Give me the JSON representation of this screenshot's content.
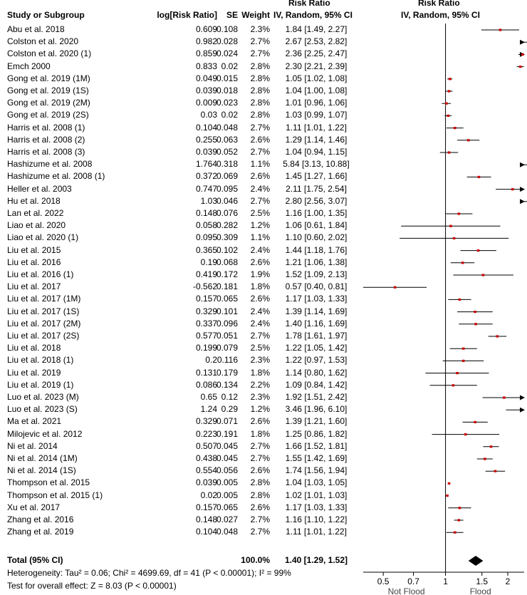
{
  "headers": {
    "study": "Study or Subgroup",
    "log_rr": "log[Risk Ratio]",
    "se": "SE",
    "weight": "Weight",
    "rr_top": "Risk Ratio",
    "rr_method": "IV, Random, 95% CI",
    "plot_top": "Risk Ratio",
    "plot_method": "IV, Random, 95% CI"
  },
  "chart_data": {
    "type": "forest",
    "x_scale": "log",
    "xlim": [
      0.4,
      2.4
    ],
    "x_ticks": [
      "0.5",
      "0.7",
      "1",
      "1.5",
      "2"
    ],
    "x_tick_values": [
      0.5,
      0.7,
      1,
      1.5,
      2
    ],
    "xlabel_left": "Not Flood",
    "xlabel_right": "Flood",
    "reference_line": 1,
    "studies": [
      {
        "name": "Abu et al. 2018",
        "log_rr": "0.609",
        "se": "0.108",
        "weight": "2.3%",
        "ci_text": "1.84 [1.49, 2.27]",
        "rr": 1.84,
        "lo": 1.49,
        "hi": 2.27
      },
      {
        "name": "Colston et al. 2020",
        "log_rr": "0.982",
        "se": "0.028",
        "weight": "2.7%",
        "ci_text": "2.67 [2.53, 2.82]",
        "rr": 2.67,
        "lo": 2.53,
        "hi": 2.82
      },
      {
        "name": "Colston et al. 2020 (1)",
        "log_rr": "0.859",
        "se": "0.024",
        "weight": "2.7%",
        "ci_text": "2.36 [2.25, 2.47]",
        "rr": 2.36,
        "lo": 2.25,
        "hi": 2.47
      },
      {
        "name": "Emch 2000",
        "log_rr": "0.833",
        "se": "0.02",
        "weight": "2.8%",
        "ci_text": "2.30 [2.21, 2.39]",
        "rr": 2.3,
        "lo": 2.21,
        "hi": 2.39
      },
      {
        "name": "Gong et al. 2019 (1M)",
        "log_rr": "0.049",
        "se": "0.015",
        "weight": "2.8%",
        "ci_text": "1.05 [1.02, 1.08]",
        "rr": 1.05,
        "lo": 1.02,
        "hi": 1.08
      },
      {
        "name": "Gong et al. 2019 (1S)",
        "log_rr": "0.039",
        "se": "0.018",
        "weight": "2.8%",
        "ci_text": "1.04 [1.00, 1.08]",
        "rr": 1.04,
        "lo": 1.0,
        "hi": 1.08
      },
      {
        "name": "Gong et al. 2019 (2M)",
        "log_rr": "0.009",
        "se": "0.023",
        "weight": "2.8%",
        "ci_text": "1.01 [0.96, 1.06]",
        "rr": 1.01,
        "lo": 0.96,
        "hi": 1.06
      },
      {
        "name": "Gong et al. 2019 (2S)",
        "log_rr": "0.03",
        "se": "0.02",
        "weight": "2.8%",
        "ci_text": "1.03 [0.99, 1.07]",
        "rr": 1.03,
        "lo": 0.99,
        "hi": 1.07
      },
      {
        "name": "Harris et al. 2008 (1)",
        "log_rr": "0.104",
        "se": "0.048",
        "weight": "2.7%",
        "ci_text": "1.11 [1.01, 1.22]",
        "rr": 1.11,
        "lo": 1.01,
        "hi": 1.22
      },
      {
        "name": "Harris et al. 2008 (2)",
        "log_rr": "0.255",
        "se": "0.063",
        "weight": "2.6%",
        "ci_text": "1.29 [1.14, 1.46]",
        "rr": 1.29,
        "lo": 1.14,
        "hi": 1.46
      },
      {
        "name": "Harris et al. 2008 (3)",
        "log_rr": "0.039",
        "se": "0.052",
        "weight": "2.7%",
        "ci_text": "1.04 [0.94, 1.15]",
        "rr": 1.04,
        "lo": 0.94,
        "hi": 1.15
      },
      {
        "name": "Hashizume et al. 2008",
        "log_rr": "1.764",
        "se": "0.318",
        "weight": "1.1%",
        "ci_text": "5.84 [3.13, 10.88]",
        "rr": 5.84,
        "lo": 3.13,
        "hi": 10.88
      },
      {
        "name": "Hashizume et al. 2008 (1)",
        "log_rr": "0.372",
        "se": "0.069",
        "weight": "2.6%",
        "ci_text": "1.45 [1.27, 1.66]",
        "rr": 1.45,
        "lo": 1.27,
        "hi": 1.66
      },
      {
        "name": "Heller et al. 2003",
        "log_rr": "0.747",
        "se": "0.095",
        "weight": "2.4%",
        "ci_text": "2.11 [1.75, 2.54]",
        "rr": 2.11,
        "lo": 1.75,
        "hi": 2.54
      },
      {
        "name": "Hu et al. 2018",
        "log_rr": "1.03",
        "se": "0.046",
        "weight": "2.7%",
        "ci_text": "2.80 [2.56, 3.07]",
        "rr": 2.8,
        "lo": 2.56,
        "hi": 3.07
      },
      {
        "name": "Lan et al. 2022",
        "log_rr": "0.148",
        "se": "0.076",
        "weight": "2.5%",
        "ci_text": "1.16 [1.00, 1.35]",
        "rr": 1.16,
        "lo": 1.0,
        "hi": 1.35
      },
      {
        "name": "Liao et al. 2020",
        "log_rr": "0.058",
        "se": "0.282",
        "weight": "1.2%",
        "ci_text": "1.06 [0.61, 1.84]",
        "rr": 1.06,
        "lo": 0.61,
        "hi": 1.84
      },
      {
        "name": "Liao et al. 2020 (1)",
        "log_rr": "0.095",
        "se": "0.309",
        "weight": "1.1%",
        "ci_text": "1.10 [0.60, 2.02]",
        "rr": 1.1,
        "lo": 0.6,
        "hi": 2.02
      },
      {
        "name": "Liu et al. 2015",
        "log_rr": "0.365",
        "se": "0.102",
        "weight": "2.4%",
        "ci_text": "1.44 [1.18, 1.76]",
        "rr": 1.44,
        "lo": 1.18,
        "hi": 1.76
      },
      {
        "name": "Liu et al. 2016",
        "log_rr": "0.19",
        "se": "0.068",
        "weight": "2.6%",
        "ci_text": "1.21 [1.06, 1.38]",
        "rr": 1.21,
        "lo": 1.06,
        "hi": 1.38
      },
      {
        "name": "Liu et al. 2016 (1)",
        "log_rr": "0.419",
        "se": "0.172",
        "weight": "1.9%",
        "ci_text": "1.52 [1.09, 2.13]",
        "rr": 1.52,
        "lo": 1.09,
        "hi": 2.13
      },
      {
        "name": "Liu et al. 2017",
        "log_rr": "-0.562",
        "se": "0.181",
        "weight": "1.8%",
        "ci_text": "0.57 [0.40, 0.81]",
        "rr": 0.57,
        "lo": 0.4,
        "hi": 0.81
      },
      {
        "name": "Liu et al. 2017 (1M)",
        "log_rr": "0.157",
        "se": "0.065",
        "weight": "2.6%",
        "ci_text": "1.17 [1.03, 1.33]",
        "rr": 1.17,
        "lo": 1.03,
        "hi": 1.33
      },
      {
        "name": "Liu et al. 2017 (1S)",
        "log_rr": "0.329",
        "se": "0.101",
        "weight": "2.4%",
        "ci_text": "1.39 [1.14, 1.69]",
        "rr": 1.39,
        "lo": 1.14,
        "hi": 1.69
      },
      {
        "name": "Liu et al. 2017 (2M)",
        "log_rr": "0.337",
        "se": "0.096",
        "weight": "2.4%",
        "ci_text": "1.40 [1.16, 1.69]",
        "rr": 1.4,
        "lo": 1.16,
        "hi": 1.69
      },
      {
        "name": "Liu et al. 2017 (2S)",
        "log_rr": "0.577",
        "se": "0.051",
        "weight": "2.7%",
        "ci_text": "1.78 [1.61, 1.97]",
        "rr": 1.78,
        "lo": 1.61,
        "hi": 1.97
      },
      {
        "name": "Liu et al. 2018",
        "log_rr": "0.199",
        "se": "0.079",
        "weight": "2.5%",
        "ci_text": "1.22 [1.05, 1.42]",
        "rr": 1.22,
        "lo": 1.05,
        "hi": 1.42
      },
      {
        "name": "Liu et al. 2018 (1)",
        "log_rr": "0.2",
        "se": "0.116",
        "weight": "2.3%",
        "ci_text": "1.22 [0.97, 1.53]",
        "rr": 1.22,
        "lo": 0.97,
        "hi": 1.53
      },
      {
        "name": "Liu et al. 2019",
        "log_rr": "0.131",
        "se": "0.179",
        "weight": "1.8%",
        "ci_text": "1.14 [0.80, 1.62]",
        "rr": 1.14,
        "lo": 0.8,
        "hi": 1.62
      },
      {
        "name": "Liu et al. 2019 (1)",
        "log_rr": "0.086",
        "se": "0.134",
        "weight": "2.2%",
        "ci_text": "1.09 [0.84, 1.42]",
        "rr": 1.09,
        "lo": 0.84,
        "hi": 1.42
      },
      {
        "name": "Luo et al. 2023 (M)",
        "log_rr": "0.65",
        "se": "0.12",
        "weight": "2.3%",
        "ci_text": "1.92 [1.51, 2.42]",
        "rr": 1.92,
        "lo": 1.51,
        "hi": 2.42
      },
      {
        "name": "Luo et al. 2023 (S)",
        "log_rr": "1.24",
        "se": "0.29",
        "weight": "1.2%",
        "ci_text": "3.46 [1.96, 6.10]",
        "rr": 3.46,
        "lo": 1.96,
        "hi": 6.1
      },
      {
        "name": "Ma et al. 2021",
        "log_rr": "0.329",
        "se": "0.071",
        "weight": "2.6%",
        "ci_text": "1.39 [1.21, 1.60]",
        "rr": 1.39,
        "lo": 1.21,
        "hi": 1.6
      },
      {
        "name": "Milojevic et al. 2012",
        "log_rr": "0.223",
        "se": "0.191",
        "weight": "1.8%",
        "ci_text": "1.25 [0.86, 1.82]",
        "rr": 1.25,
        "lo": 0.86,
        "hi": 1.82
      },
      {
        "name": "Ni et al. 2014",
        "log_rr": "0.507",
        "se": "0.045",
        "weight": "2.7%",
        "ci_text": "1.66 [1.52, 1.81]",
        "rr": 1.66,
        "lo": 1.52,
        "hi": 1.81
      },
      {
        "name": "Ni et al. 2014 (1M)",
        "log_rr": "0.438",
        "se": "0.045",
        "weight": "2.7%",
        "ci_text": "1.55 [1.42, 1.69]",
        "rr": 1.55,
        "lo": 1.42,
        "hi": 1.69
      },
      {
        "name": "Ni et al. 2014 (1S)",
        "log_rr": "0.554",
        "se": "0.056",
        "weight": "2.6%",
        "ci_text": "1.74 [1.56, 1.94]",
        "rr": 1.74,
        "lo": 1.56,
        "hi": 1.94
      },
      {
        "name": "Thompson et al. 2015",
        "log_rr": "0.039",
        "se": "0.005",
        "weight": "2.8%",
        "ci_text": "1.04 [1.03, 1.05]",
        "rr": 1.04,
        "lo": 1.03,
        "hi": 1.05
      },
      {
        "name": "Thompson et al. 2015 (1)",
        "log_rr": "0.02",
        "se": "0.005",
        "weight": "2.8%",
        "ci_text": "1.02 [1.01, 1.03]",
        "rr": 1.02,
        "lo": 1.01,
        "hi": 1.03
      },
      {
        "name": "Xu et al. 2017",
        "log_rr": "0.157",
        "se": "0.065",
        "weight": "2.6%",
        "ci_text": "1.17 [1.03, 1.33]",
        "rr": 1.17,
        "lo": 1.03,
        "hi": 1.33
      },
      {
        "name": "Zhang et al. 2016",
        "log_rr": "0.148",
        "se": "0.027",
        "weight": "2.7%",
        "ci_text": "1.16 [1.10, 1.22]",
        "rr": 1.16,
        "lo": 1.1,
        "hi": 1.22
      },
      {
        "name": "Zhang et al. 2019",
        "log_rr": "0.104",
        "se": "0.048",
        "weight": "2.7%",
        "ci_text": "1.11 [1.01, 1.22]",
        "rr": 1.11,
        "lo": 1.01,
        "hi": 1.22
      }
    ],
    "total": {
      "name": "Total (95% CI)",
      "weight": "100.0%",
      "ci_text": "1.40 [1.29, 1.52]",
      "rr": 1.4,
      "lo": 1.29,
      "hi": 1.52
    },
    "heterogeneity": "Heterogeneity: Tau² = 0.06; Chi² = 4699.69, df = 41 (P < 0.00001); I² = 99%",
    "overall_effect": "Test for overall effect: Z = 8.03 (P < 0.00001)",
    "colors": {
      "point": "#cc0000",
      "line": "#000000"
    }
  }
}
